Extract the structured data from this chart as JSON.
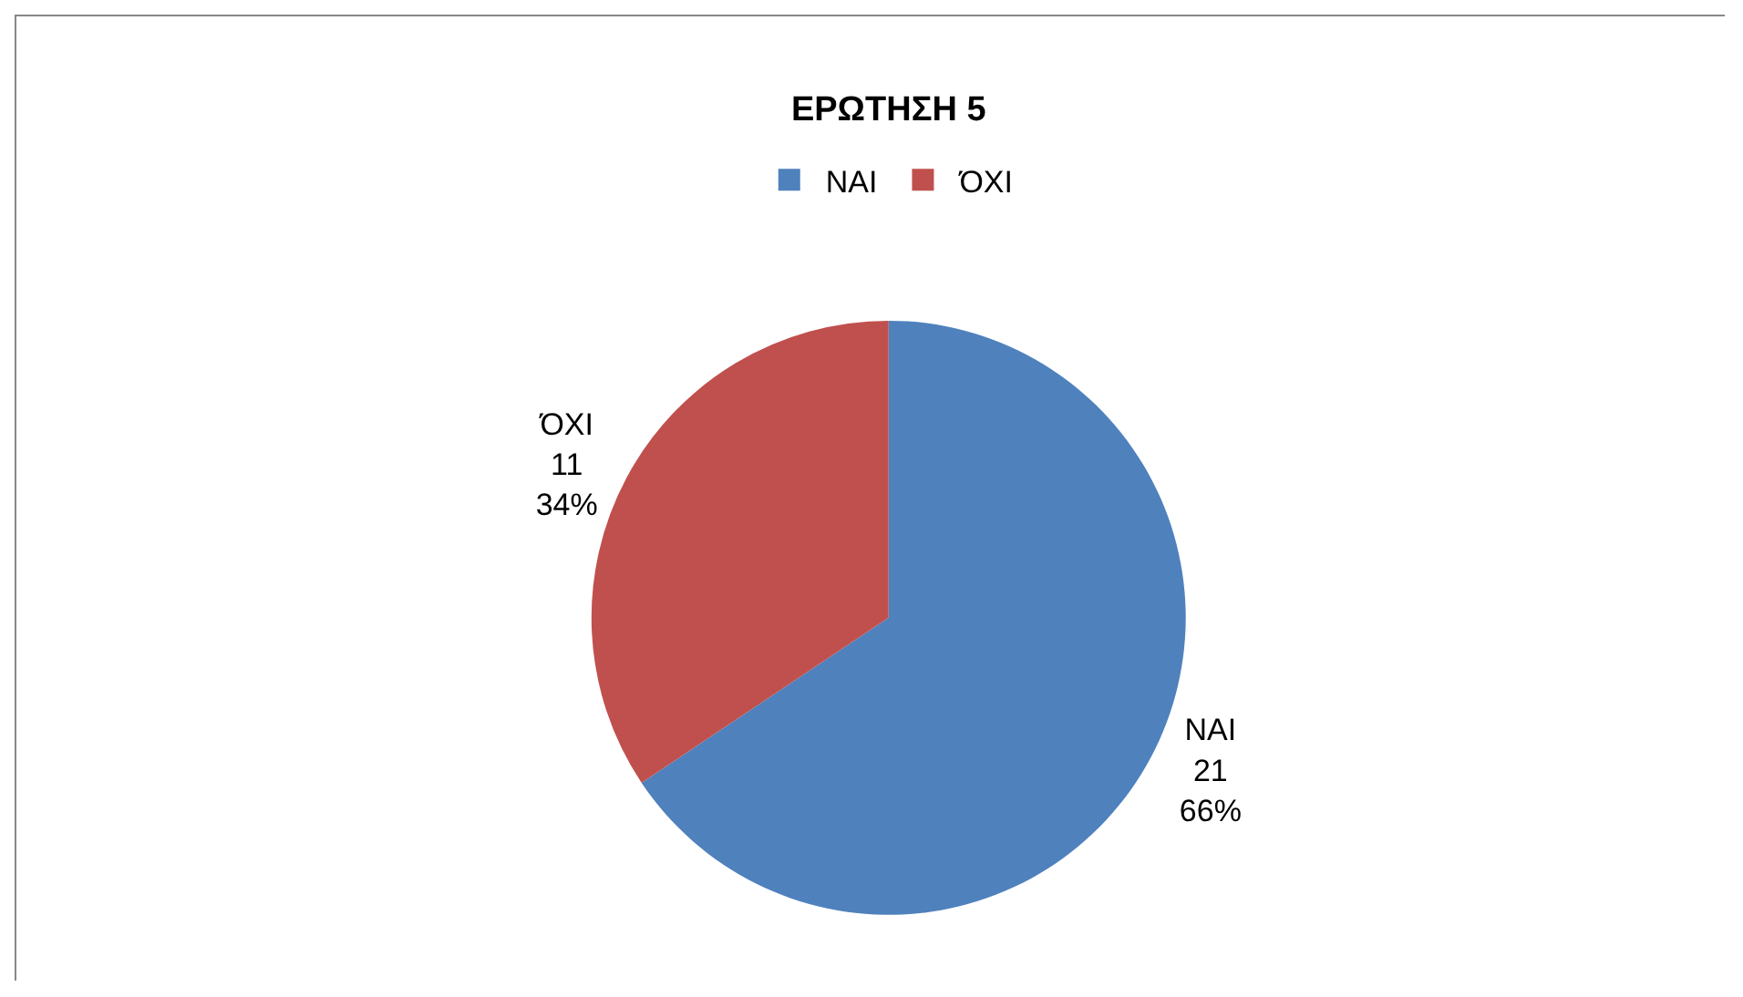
{
  "chart_data": {
    "type": "pie",
    "title": "ΕΡΩΤΗΣΗ 5",
    "categories": [
      "ΝΑΙ",
      "ΌΧΙ"
    ],
    "values": [
      21,
      11
    ],
    "colors": [
      "#4f81bd",
      "#c0504d"
    ],
    "value_labels": [
      "21\n66%",
      "11\n34%"
    ],
    "legend": "top"
  }
}
